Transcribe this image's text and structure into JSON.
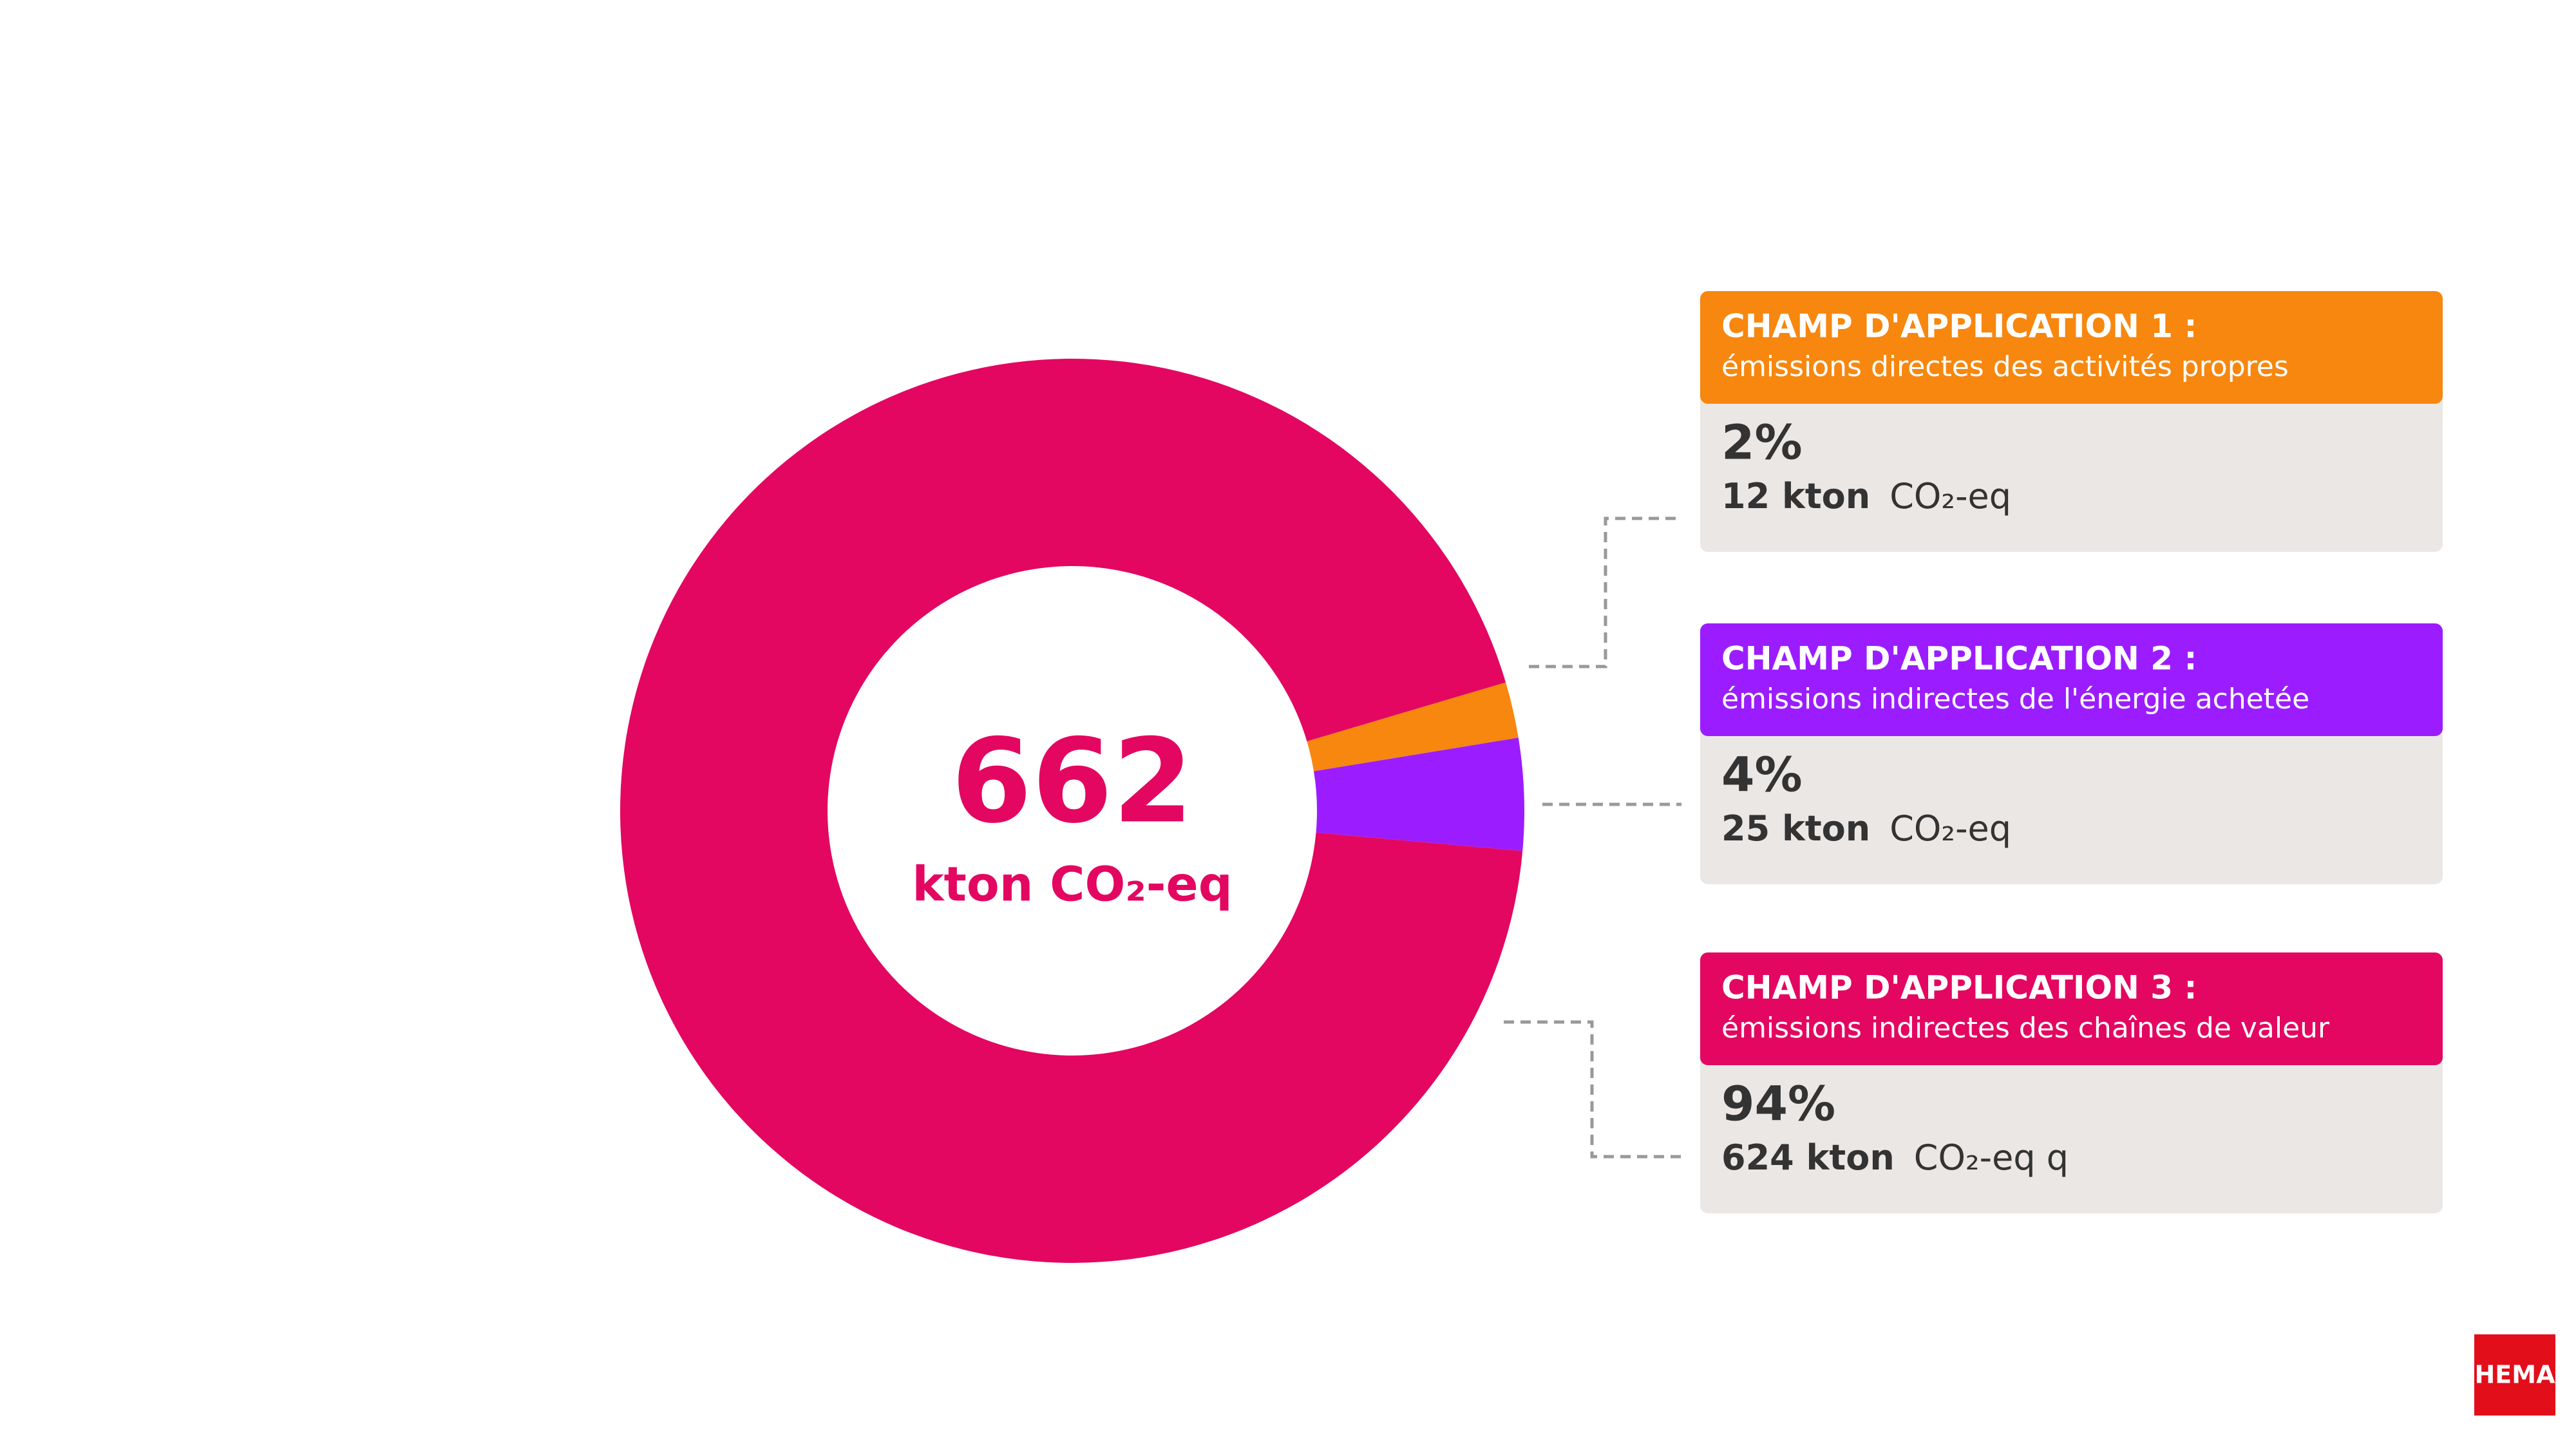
{
  "chart_data": {
    "type": "pie",
    "donut": true,
    "total": 662,
    "total_unit": "kton CO₂-eq",
    "categories": [
      "CHAMP D'APPLICATION 1 :",
      "CHAMP D'APPLICATION 2 :",
      "CHAMP D'APPLICATION 3 :"
    ],
    "descriptions": [
      "émissions directes des activités propres",
      "émissions indirectes de l'énergie achetée",
      "émissions indirectes des chaînes de valeur"
    ],
    "values": [
      2,
      4,
      94
    ],
    "value_labels": [
      "2%",
      "4%",
      "94%"
    ],
    "colors": [
      "#f7870f",
      "#9b1dff",
      "#e30761"
    ],
    "amounts": [
      12,
      25,
      624
    ],
    "amount_labels": [
      "12 kton",
      "25 kton",
      "624 kton"
    ],
    "amount_units": [
      "CO₂-eq",
      "CO₂-eq",
      "CO₂-eq q"
    ]
  },
  "logo": "HEMA"
}
